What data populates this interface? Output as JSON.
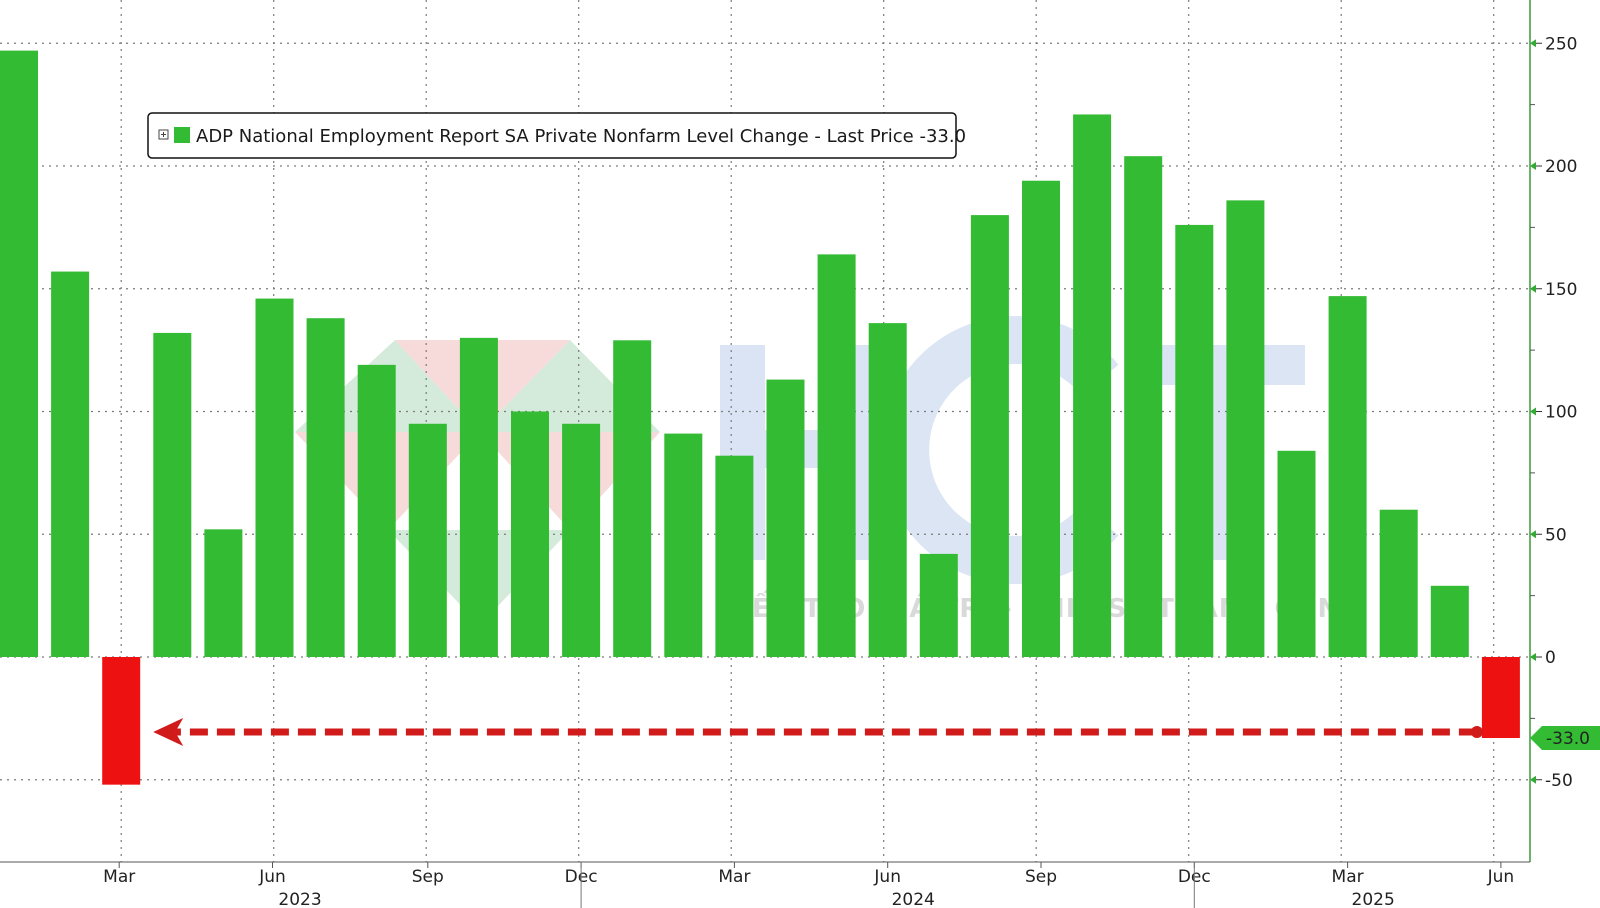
{
  "chart_data": {
    "type": "bar",
    "legend": {
      "text": "ADP National Employment Report SA Private Nonfarm Level Change - Last Price -33.0",
      "placement": "top-left",
      "swatch_color": "#33bb33"
    },
    "series": [
      {
        "name": "ADP National Employment Report SA Private Nonfarm Level Change",
        "values": [
          247,
          157,
          -52,
          132,
          52,
          146,
          138,
          119,
          95,
          130,
          100,
          95,
          129,
          91,
          82,
          113,
          164,
          136,
          42,
          180,
          194,
          221,
          204,
          176,
          186,
          84,
          147,
          60,
          29,
          -33
        ]
      }
    ],
    "positive_color": "#33bb33",
    "negative_color": "#ee1111",
    "y_axis": {
      "position": "right",
      "ticks": [
        "250",
        "200",
        "150",
        "100",
        "50",
        "0",
        "-50"
      ],
      "tick_values": [
        250,
        200,
        150,
        100,
        50,
        0,
        -50
      ],
      "ylim": [
        -82,
        268
      ]
    },
    "x_axis": {
      "ticks": [
        "Mar",
        "Jun",
        "Sep",
        "Dec",
        "Mar",
        "Jun",
        "Sep",
        "Dec",
        "Mar",
        "Jun"
      ],
      "tick_bar_index": [
        2,
        5,
        8,
        11,
        14,
        17,
        20,
        23,
        26,
        29
      ],
      "years": [
        "2023",
        "2024",
        "2025"
      ],
      "year_bar_index": [
        5.5,
        17.5,
        26.5
      ],
      "year_boundaries_bar_index": [
        11,
        23
      ]
    },
    "last_value": {
      "label": "-33.0",
      "value": -33,
      "color": "#33bb33"
    },
    "annotation_arrow": {
      "from_bar_index": 29,
      "to_bar_index": 2,
      "value": -33,
      "color": "#d11a1a"
    },
    "grid": true,
    "watermark": {
      "text": "KIẾN TẠO GIÁ TRỊ - CHIA SẺ THÀNH CÔNG"
    }
  }
}
